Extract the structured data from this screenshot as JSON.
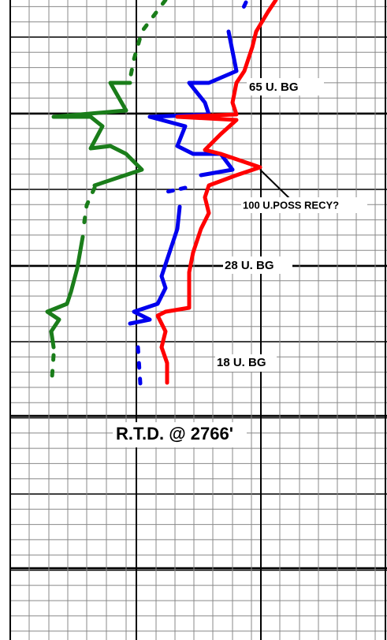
{
  "annotations": [
    "65 U. BG",
    "100 U.POSS RECY?",
    "28 U. BG",
    "18 U. BG"
  ],
  "td_note": "R.T.D. @ 2766'"
}
